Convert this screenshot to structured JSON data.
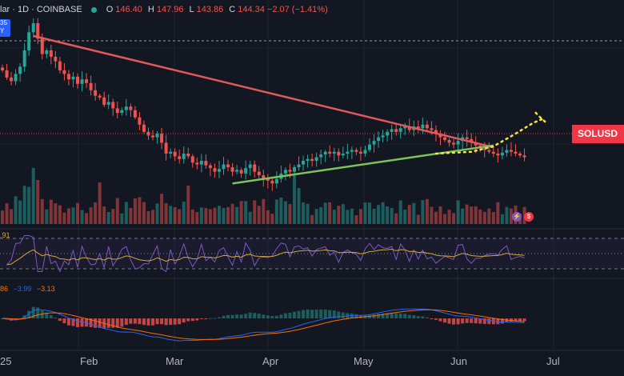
{
  "header": {
    "symbol": "lar · 1D · COINBASE",
    "o_label": "O",
    "o": "146.40",
    "h_label": "H",
    "h": "147.96",
    "l_label": "L",
    "l": "143.86",
    "c_label": "C",
    "c": "144.34",
    "change": "−2.07 (−1.41%)",
    "status_color": "#26a69a"
  },
  "badge": {
    "top": "35",
    "bottom": "Y"
  },
  "price_label": "SOLUSD",
  "rsi_label": ".91",
  "macd_labels": {
    "a": "86",
    "b": "−3.99",
    "c": "−3.13"
  },
  "x_axis": [
    "25",
    "Feb",
    "Mar",
    "Apr",
    "May",
    "Jun",
    "Jul"
  ],
  "colors": {
    "up": "#26a69a",
    "down": "#ef5350",
    "resistance": "#e05a5a",
    "support": "#7cc45a",
    "projection": "#f5e642",
    "rsi": "#7e57c2",
    "rsi_ma": "#d4a83a",
    "macd": "#2962ff",
    "signal": "#ff6d00"
  },
  "chart_data": {
    "type": "candlestick",
    "title": "",
    "series_open_first": 243,
    "closes": [
      240,
      232,
      228,
      236,
      244,
      262,
      282,
      292,
      275,
      258,
      262,
      255,
      250,
      240,
      236,
      230,
      233,
      225,
      230,
      226,
      218,
      212,
      210,
      202,
      205,
      198,
      193,
      196,
      200,
      196,
      188,
      180,
      172,
      168,
      166,
      170,
      160,
      148,
      150,
      145,
      142,
      148,
      145,
      138,
      136,
      140,
      135,
      132,
      128,
      131,
      136,
      133,
      128,
      130,
      126,
      132,
      136,
      128,
      124,
      120,
      118,
      115,
      120,
      126,
      130,
      128,
      133,
      136,
      140,
      142,
      140,
      144,
      147,
      150,
      148,
      150,
      146,
      148,
      150,
      152,
      150,
      148,
      152,
      158,
      162,
      166,
      168,
      172,
      175,
      172,
      176,
      178,
      174,
      178,
      176,
      180,
      176,
      174,
      170,
      166,
      163,
      160,
      158,
      162,
      166,
      164,
      160,
      157,
      154,
      152,
      150,
      148,
      146,
      149,
      152,
      150,
      148,
      146,
      144
    ],
    "trendlines": [
      {
        "name": "resistance",
        "from": [
          7,
          278
        ],
        "to": [
          111,
          155
        ]
      },
      {
        "name": "support",
        "from": [
          52,
          115
        ],
        "to": [
          111,
          157
        ]
      },
      {
        "name": "projection",
        "points": [
          [
            98,
            148
          ],
          [
            106,
            150
          ],
          [
            111,
            156
          ],
          [
            116,
            170
          ],
          [
            120,
            182
          ],
          [
            122,
            186
          ]
        ]
      }
    ],
    "x_ticks": [
      "25",
      "Feb",
      "Mar",
      "Apr",
      "May",
      "Jun",
      "Jul"
    ],
    "panes": [
      "price",
      "volume",
      "RSI",
      "MACD"
    ]
  }
}
